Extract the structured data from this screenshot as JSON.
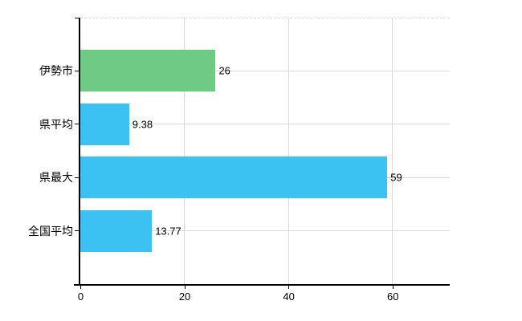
{
  "chart_data": {
    "type": "bar",
    "orientation": "horizontal",
    "title": "",
    "xlabel": "",
    "ylabel": "",
    "categories": [
      "伊勢市",
      "県平均",
      "県最大",
      "全国平均"
    ],
    "values": [
      26,
      9.38,
      59,
      13.77
    ],
    "value_labels": [
      "26",
      "9.38",
      "59",
      "13.77"
    ],
    "bar_colors": [
      "#6fca85",
      "#3cc1f3",
      "#3cc1f3",
      "#3cc1f3"
    ],
    "x_ticks": [
      0,
      20,
      40,
      60
    ],
    "x_tick_labels": [
      "0",
      "20",
      "40",
      "60"
    ],
    "xlim": [
      0,
      71
    ],
    "grid": true,
    "legend": false
  },
  "colors": {
    "bar_green": "#6fca85",
    "bar_blue": "#3cc1f3",
    "gridline": "#d9d9d9",
    "axis": "#000000",
    "text": "#000000",
    "background": "#ffffff"
  }
}
